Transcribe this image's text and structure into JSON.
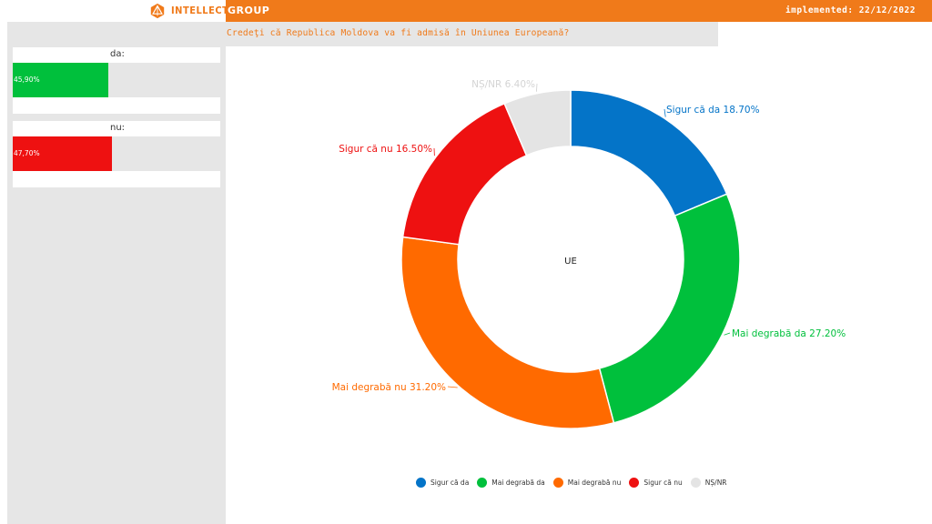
{
  "header": {
    "logo_left": "INTELLECT",
    "logo_right": "GROUP",
    "implemented": "implemented: 22/12/2022",
    "question": "Credeţi că Republica Moldova va fi admisă în Uniunea Europeană?"
  },
  "summary_cards": [
    {
      "label": "da:",
      "value_text": "45,90%",
      "value": 45.9,
      "color": "#00c03c"
    },
    {
      "label": "nu:",
      "value_text": "47,70%",
      "value": 47.7,
      "color": "#ee1111"
    }
  ],
  "chart_data": {
    "type": "pie",
    "donut": true,
    "center_label": "UE",
    "legend_position": "bottom",
    "slices": [
      {
        "name": "Sigur că da",
        "value": 18.7,
        "label": "Sigur că da 18.70%",
        "color": "#0474c8"
      },
      {
        "name": "Mai degrabă da",
        "value": 27.2,
        "label": "Mai degrabă da 27.20%",
        "color": "#00c03c"
      },
      {
        "name": "Mai degrabă nu",
        "value": 31.2,
        "label": "Mai degrabă nu 31.20%",
        "color": "#ff6a00"
      },
      {
        "name": "Sigur că nu",
        "value": 16.5,
        "label": "Sigur că nu 16.50%",
        "color": "#ee1111"
      },
      {
        "name": "NȘ/NR",
        "value": 6.4,
        "label": "NȘ/NR 6.40%",
        "color": "#e4e4e4"
      }
    ]
  }
}
